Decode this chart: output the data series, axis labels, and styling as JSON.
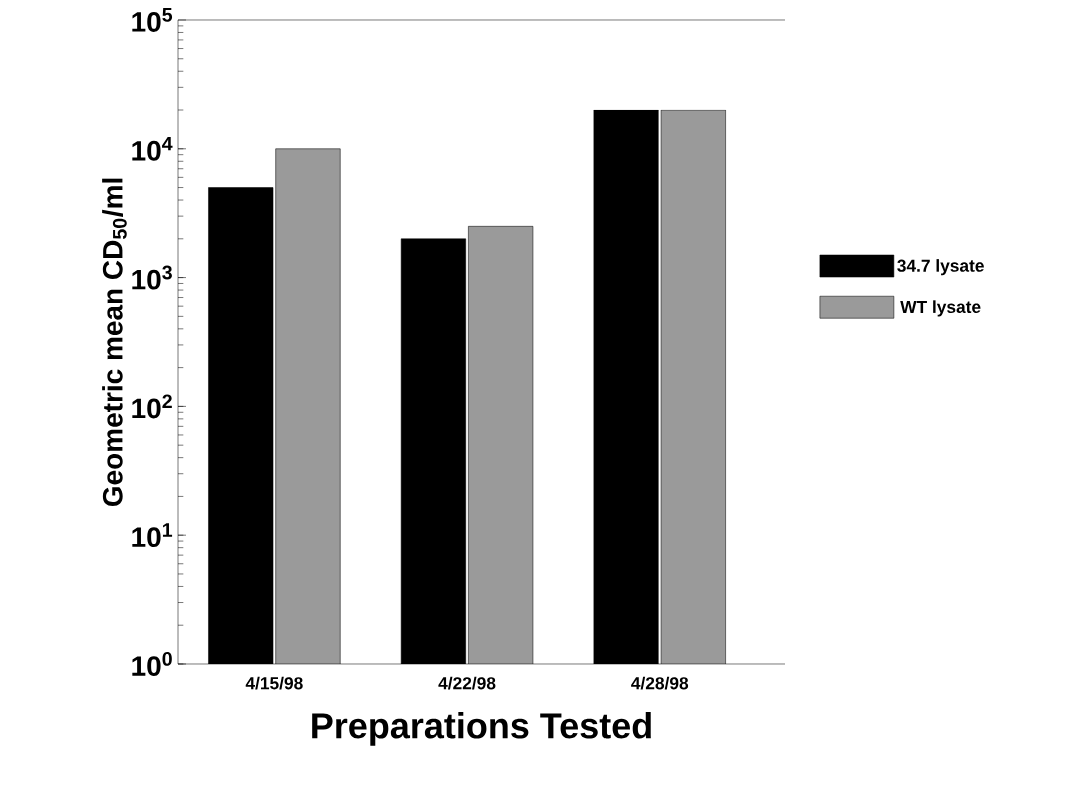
{
  "chart_data": {
    "type": "bar",
    "xlabel": "Preparations Tested",
    "ylabel": "Geometric mean CD$_{50}$/ml",
    "categories": [
      "4/15/98",
      "4/22/98",
      "4/28/98"
    ],
    "series": [
      {
        "name": "34.7 lysate",
        "color": "#000000",
        "values": [
          5000,
          2000,
          20000
        ]
      },
      {
        "name": "WT lysate",
        "color": "#9a9a9a",
        "values": [
          10000,
          2500,
          20000
        ]
      }
    ],
    "log": "y",
    "ylim": [
      1,
      100000
    ],
    "yticks": [
      {
        "value": 1,
        "label": "10$^{0}$"
      },
      {
        "value": 10,
        "label": "10$^{1}$"
      },
      {
        "value": 100,
        "label": "10$^{2}$"
      },
      {
        "value": 1000,
        "label": "10$^{3}$"
      },
      {
        "value": 10000,
        "label": "10$^{4}$"
      },
      {
        "value": 100000,
        "label": "10$^{5}$"
      }
    ],
    "legend": "right",
    "grid": false
  }
}
